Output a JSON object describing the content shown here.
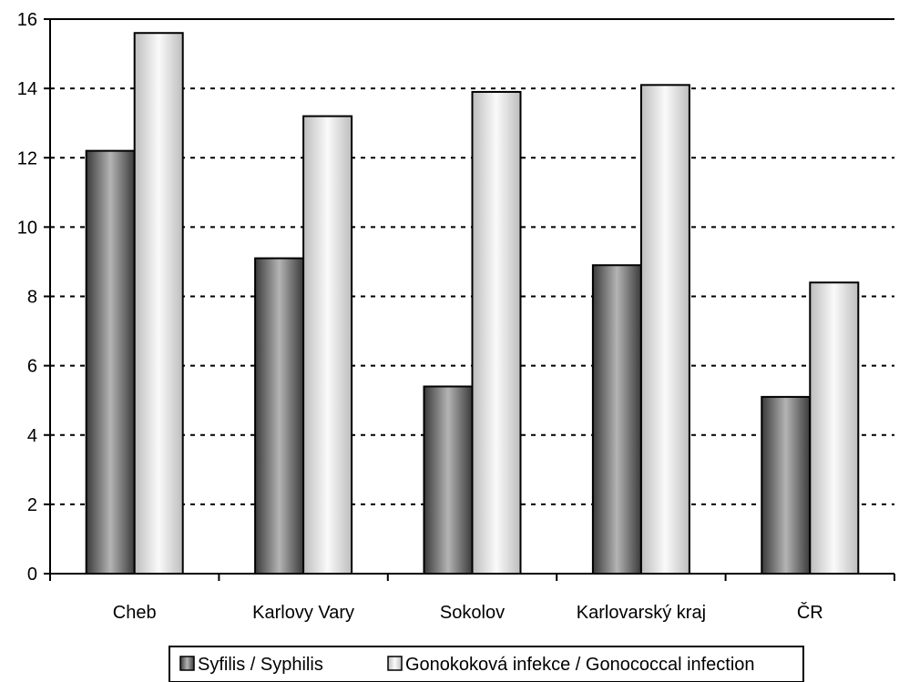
{
  "chart_data": {
    "type": "bar",
    "categories": [
      "Cheb",
      "Karlovy Vary",
      "Sokolov",
      "Karlovarský kraj",
      "ČR"
    ],
    "series": [
      {
        "name": "Syfilis / Syphilis",
        "values": [
          12.2,
          9.1,
          5.4,
          8.9,
          5.1
        ],
        "style": "dark-gradient"
      },
      {
        "name": "Gonokoková infekce / Gonococcal infection",
        "values": [
          15.6,
          13.2,
          13.9,
          14.1,
          8.4
        ],
        "style": "light-gradient"
      }
    ],
    "yticks": [
      0,
      2,
      4,
      6,
      8,
      10,
      12,
      14,
      16
    ],
    "ylim": [
      0,
      16
    ],
    "grid": true,
    "legend_position": "bottom"
  }
}
